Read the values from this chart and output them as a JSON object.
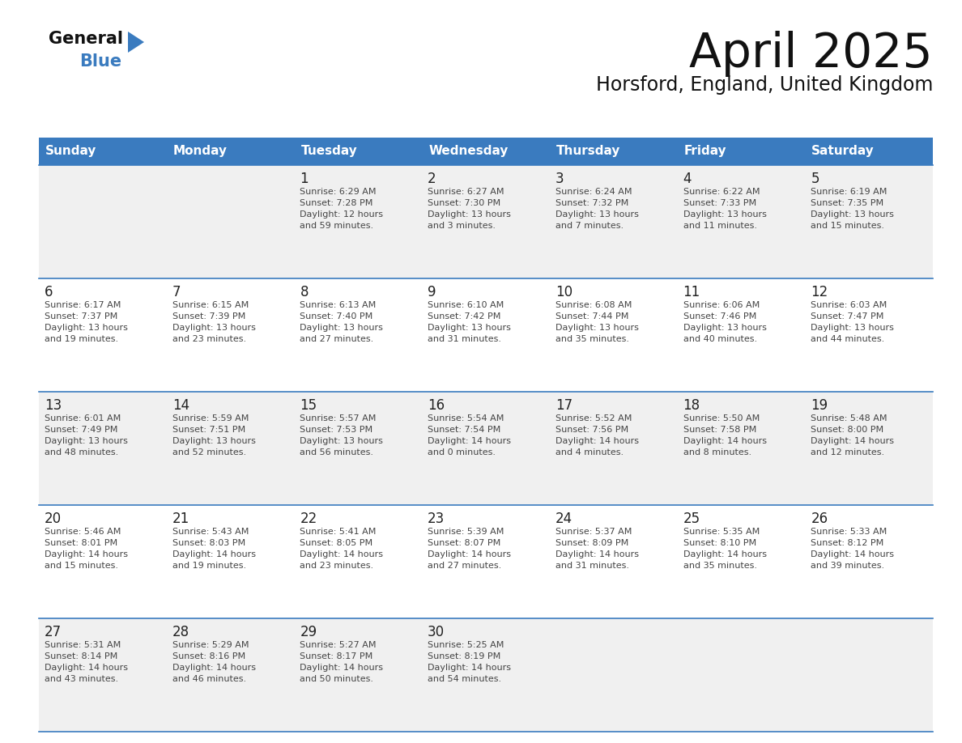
{
  "title": "April 2025",
  "subtitle": "Horsford, England, United Kingdom",
  "header_bg": "#3a7bbf",
  "header_text": "#ffffff",
  "day_names": [
    "Sunday",
    "Monday",
    "Tuesday",
    "Wednesday",
    "Thursday",
    "Friday",
    "Saturday"
  ],
  "row_bg_even": "#f0f0f0",
  "row_bg_odd": "#ffffff",
  "border_color": "#3a7bbf",
  "text_color": "#444444",
  "day_num_color": "#222222",
  "logo_general_color": "#111111",
  "logo_blue_color": "#3a7bbf",
  "weeks": [
    [
      {
        "day": null,
        "text": ""
      },
      {
        "day": null,
        "text": ""
      },
      {
        "day": 1,
        "text": "Sunrise: 6:29 AM\nSunset: 7:28 PM\nDaylight: 12 hours\nand 59 minutes."
      },
      {
        "day": 2,
        "text": "Sunrise: 6:27 AM\nSunset: 7:30 PM\nDaylight: 13 hours\nand 3 minutes."
      },
      {
        "day": 3,
        "text": "Sunrise: 6:24 AM\nSunset: 7:32 PM\nDaylight: 13 hours\nand 7 minutes."
      },
      {
        "day": 4,
        "text": "Sunrise: 6:22 AM\nSunset: 7:33 PM\nDaylight: 13 hours\nand 11 minutes."
      },
      {
        "day": 5,
        "text": "Sunrise: 6:19 AM\nSunset: 7:35 PM\nDaylight: 13 hours\nand 15 minutes."
      }
    ],
    [
      {
        "day": 6,
        "text": "Sunrise: 6:17 AM\nSunset: 7:37 PM\nDaylight: 13 hours\nand 19 minutes."
      },
      {
        "day": 7,
        "text": "Sunrise: 6:15 AM\nSunset: 7:39 PM\nDaylight: 13 hours\nand 23 minutes."
      },
      {
        "day": 8,
        "text": "Sunrise: 6:13 AM\nSunset: 7:40 PM\nDaylight: 13 hours\nand 27 minutes."
      },
      {
        "day": 9,
        "text": "Sunrise: 6:10 AM\nSunset: 7:42 PM\nDaylight: 13 hours\nand 31 minutes."
      },
      {
        "day": 10,
        "text": "Sunrise: 6:08 AM\nSunset: 7:44 PM\nDaylight: 13 hours\nand 35 minutes."
      },
      {
        "day": 11,
        "text": "Sunrise: 6:06 AM\nSunset: 7:46 PM\nDaylight: 13 hours\nand 40 minutes."
      },
      {
        "day": 12,
        "text": "Sunrise: 6:03 AM\nSunset: 7:47 PM\nDaylight: 13 hours\nand 44 minutes."
      }
    ],
    [
      {
        "day": 13,
        "text": "Sunrise: 6:01 AM\nSunset: 7:49 PM\nDaylight: 13 hours\nand 48 minutes."
      },
      {
        "day": 14,
        "text": "Sunrise: 5:59 AM\nSunset: 7:51 PM\nDaylight: 13 hours\nand 52 minutes."
      },
      {
        "day": 15,
        "text": "Sunrise: 5:57 AM\nSunset: 7:53 PM\nDaylight: 13 hours\nand 56 minutes."
      },
      {
        "day": 16,
        "text": "Sunrise: 5:54 AM\nSunset: 7:54 PM\nDaylight: 14 hours\nand 0 minutes."
      },
      {
        "day": 17,
        "text": "Sunrise: 5:52 AM\nSunset: 7:56 PM\nDaylight: 14 hours\nand 4 minutes."
      },
      {
        "day": 18,
        "text": "Sunrise: 5:50 AM\nSunset: 7:58 PM\nDaylight: 14 hours\nand 8 minutes."
      },
      {
        "day": 19,
        "text": "Sunrise: 5:48 AM\nSunset: 8:00 PM\nDaylight: 14 hours\nand 12 minutes."
      }
    ],
    [
      {
        "day": 20,
        "text": "Sunrise: 5:46 AM\nSunset: 8:01 PM\nDaylight: 14 hours\nand 15 minutes."
      },
      {
        "day": 21,
        "text": "Sunrise: 5:43 AM\nSunset: 8:03 PM\nDaylight: 14 hours\nand 19 minutes."
      },
      {
        "day": 22,
        "text": "Sunrise: 5:41 AM\nSunset: 8:05 PM\nDaylight: 14 hours\nand 23 minutes."
      },
      {
        "day": 23,
        "text": "Sunrise: 5:39 AM\nSunset: 8:07 PM\nDaylight: 14 hours\nand 27 minutes."
      },
      {
        "day": 24,
        "text": "Sunrise: 5:37 AM\nSunset: 8:09 PM\nDaylight: 14 hours\nand 31 minutes."
      },
      {
        "day": 25,
        "text": "Sunrise: 5:35 AM\nSunset: 8:10 PM\nDaylight: 14 hours\nand 35 minutes."
      },
      {
        "day": 26,
        "text": "Sunrise: 5:33 AM\nSunset: 8:12 PM\nDaylight: 14 hours\nand 39 minutes."
      }
    ],
    [
      {
        "day": 27,
        "text": "Sunrise: 5:31 AM\nSunset: 8:14 PM\nDaylight: 14 hours\nand 43 minutes."
      },
      {
        "day": 28,
        "text": "Sunrise: 5:29 AM\nSunset: 8:16 PM\nDaylight: 14 hours\nand 46 minutes."
      },
      {
        "day": 29,
        "text": "Sunrise: 5:27 AM\nSunset: 8:17 PM\nDaylight: 14 hours\nand 50 minutes."
      },
      {
        "day": 30,
        "text": "Sunrise: 5:25 AM\nSunset: 8:19 PM\nDaylight: 14 hours\nand 54 minutes."
      },
      {
        "day": null,
        "text": ""
      },
      {
        "day": null,
        "text": ""
      },
      {
        "day": null,
        "text": ""
      }
    ]
  ]
}
